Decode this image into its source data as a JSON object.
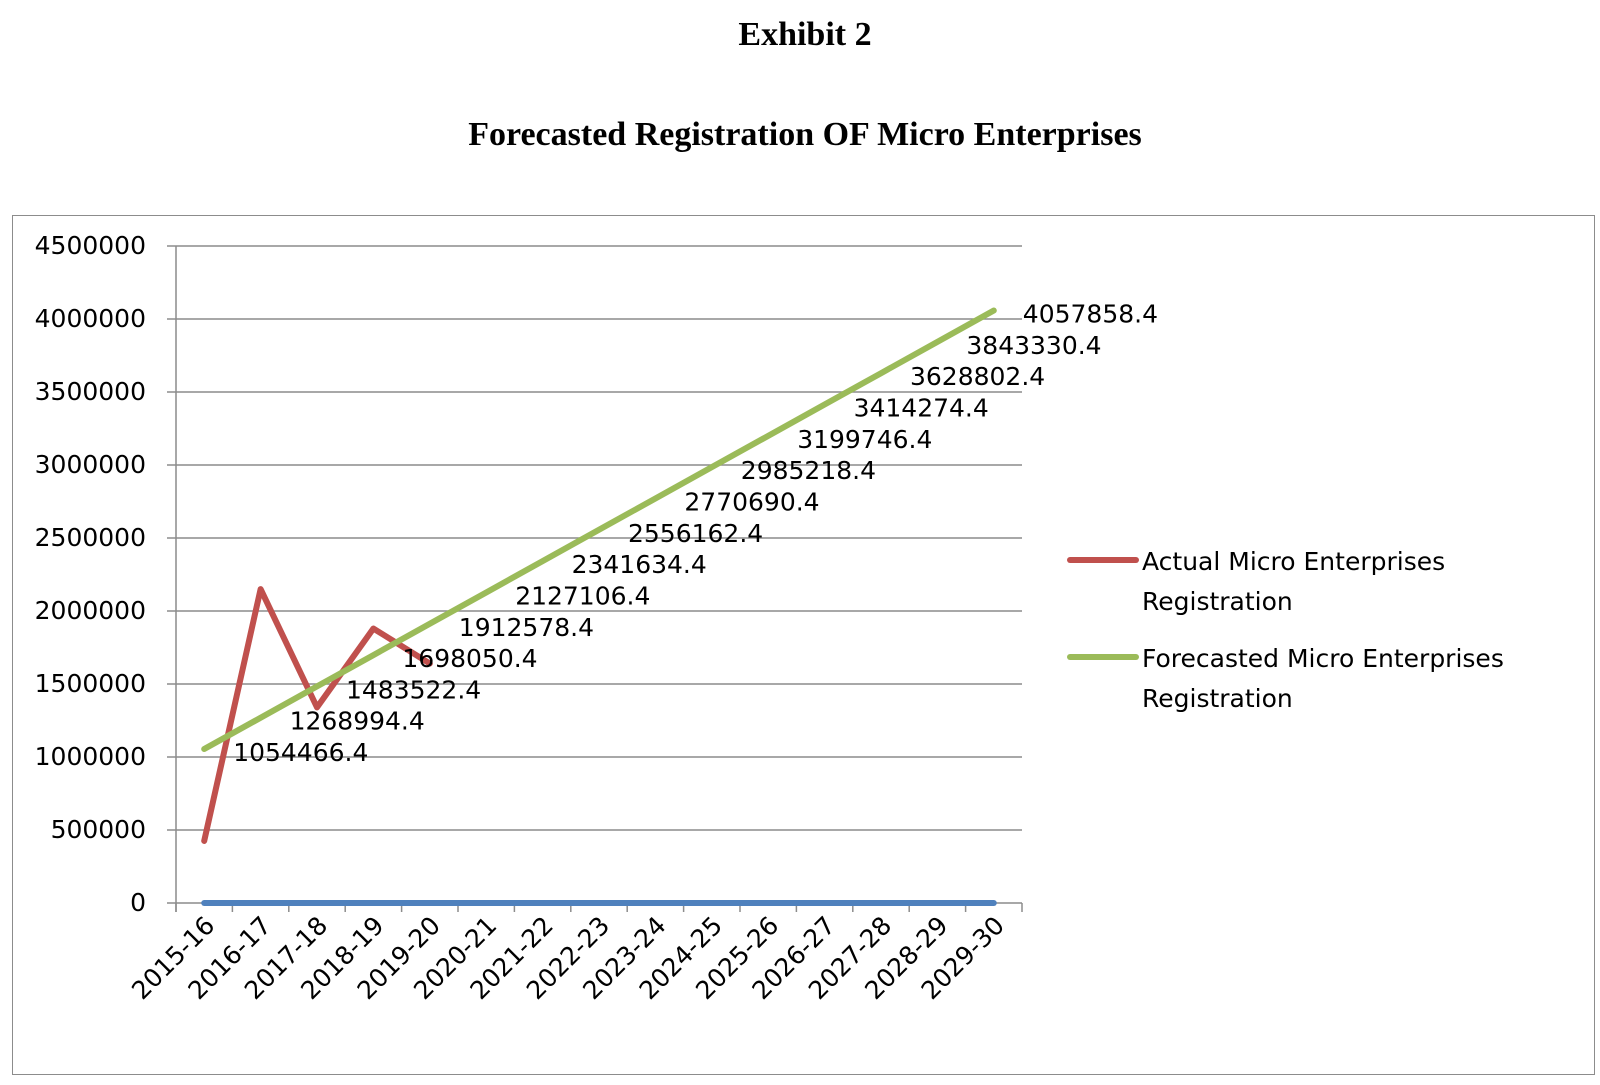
{
  "header": {
    "exhibit": "Exhibit 2",
    "title": "Forecasted Registration OF Micro Enterprises"
  },
  "chart_data": {
    "type": "line",
    "title": "Forecasted Registration OF Micro Enterprises",
    "xlabel": "",
    "ylabel": "",
    "ylim": [
      0,
      4500000
    ],
    "yticks": [
      0,
      500000,
      1000000,
      1500000,
      2000000,
      2500000,
      3000000,
      3500000,
      4000000,
      4500000
    ],
    "grid": "horizontal",
    "legend_position": "right",
    "categories": [
      "2015-16",
      "2016-17",
      "2017-18",
      "2018-19",
      "2019-20",
      "2020-21",
      "2021-22",
      "2022-23",
      "2023-24",
      "2024-25",
      "2025-26",
      "2026-27",
      "2027-28",
      "2028-29",
      "2029-30"
    ],
    "series": [
      {
        "name": "Actual Micro Enterprises Registration",
        "color": "#c0504d",
        "values": [
          425000,
          2150000,
          1340000,
          1880000,
          1640000,
          null,
          null,
          null,
          null,
          null,
          null,
          null,
          null,
          null,
          null
        ],
        "labels": false
      },
      {
        "name": "Forecasted Micro Enterprises Registration",
        "color": "#9bbb59",
        "values": [
          1054466.4,
          1268994.4,
          1483522.4,
          1698050.4,
          1912578.4,
          2127106.4,
          2341634.4,
          2556162.4,
          2770690.4,
          2985218.4,
          3199746.4,
          3414274.4,
          3628802.4,
          3843330.4,
          4057858.4
        ],
        "labels": true
      },
      {
        "color": "#4f81bd",
        "values": [
          0,
          0,
          0,
          0,
          0,
          0,
          0,
          0,
          0,
          0,
          0,
          0,
          0,
          0,
          0
        ],
        "labels": false
      }
    ]
  }
}
